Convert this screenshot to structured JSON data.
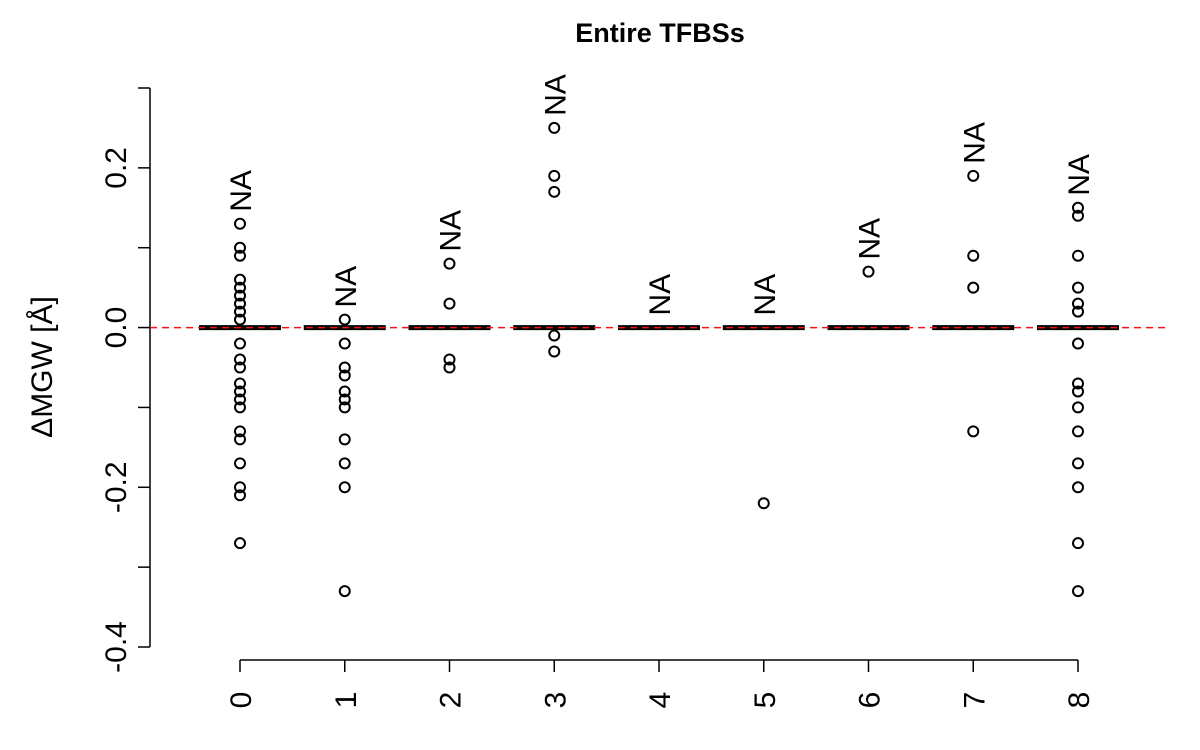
{
  "chart_data": {
    "type": "box",
    "title": "Entire TFBSs",
    "y_label": "ΔMGW [Å]",
    "categories": [
      "0",
      "1",
      "2",
      "3",
      "4",
      "5",
      "6",
      "7",
      "8"
    ],
    "q1": [
      0,
      0,
      0,
      0,
      0,
      0,
      0,
      0,
      0
    ],
    "medians": [
      0,
      0,
      0,
      0,
      0,
      0,
      0,
      0,
      0
    ],
    "q3": [
      0,
      0,
      0,
      0,
      0,
      0,
      0,
      0,
      0
    ],
    "outliers": [
      [
        0.13,
        0.1,
        0.09,
        0.06,
        0.05,
        0.04,
        0.03,
        0.02,
        0.01,
        -0.02,
        -0.04,
        -0.05,
        -0.07,
        -0.08,
        -0.09,
        -0.1,
        -0.13,
        -0.14,
        -0.17,
        -0.2,
        -0.21,
        -0.27
      ],
      [
        0.01,
        -0.02,
        -0.05,
        -0.06,
        -0.08,
        -0.09,
        -0.1,
        -0.14,
        -0.17,
        -0.2,
        -0.33
      ],
      [
        0.08,
        0.03,
        -0.04,
        -0.05
      ],
      [
        0.25,
        0.19,
        0.17,
        -0.01,
        -0.03
      ],
      [],
      [
        -0.22
      ],
      [
        0.07
      ],
      [
        0.19,
        0.09,
        0.05,
        -0.13
      ],
      [
        0.15,
        0.14,
        0.09,
        0.05,
        0.03,
        0.02,
        -0.02,
        -0.07,
        -0.08,
        -0.1,
        -0.13,
        -0.17,
        -0.2,
        -0.27,
        -0.33
      ]
    ],
    "annotations": [
      "NA",
      "NA",
      "NA",
      "NA",
      "NA",
      "NA",
      "NA",
      "NA",
      "NA"
    ],
    "ylim": [
      -0.4,
      0.3
    ],
    "yticks": [
      -0.4,
      -0.2,
      {
        "value": 0,
        "label": "0.0"
      },
      0.2
    ],
    "yminor_ticks": [
      -0.3,
      -0.1,
      0.1,
      0.3
    ],
    "reference_line": 0,
    "reference_color": "#e41a1c",
    "color": "#000000"
  }
}
